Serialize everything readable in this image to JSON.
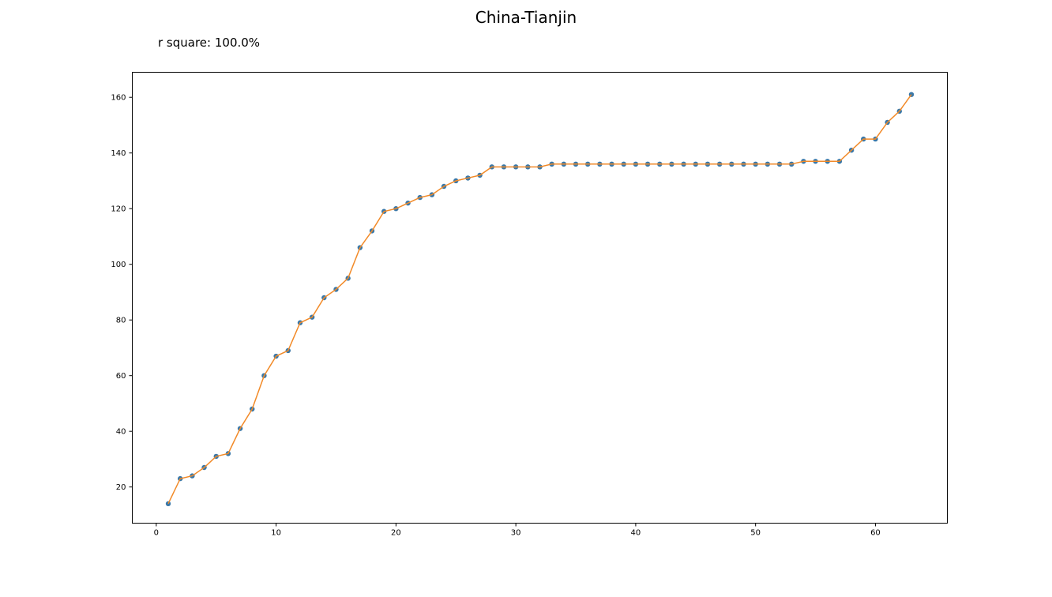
{
  "title": "China-Tianjin",
  "subtitle": "r square: 100.0%",
  "colors": {
    "marker": "#3a78a8",
    "line": "#f28a28",
    "axes": "#000000"
  },
  "chart_data": {
    "type": "line",
    "title": "China-Tianjin",
    "xlabel": "",
    "ylabel": "",
    "xlim": [
      -2,
      66
    ],
    "ylim": [
      7,
      169
    ],
    "xticks": [
      0,
      10,
      20,
      30,
      40,
      50,
      60
    ],
    "yticks": [
      20,
      40,
      60,
      80,
      100,
      120,
      140,
      160
    ],
    "grid": false,
    "x": [
      1,
      2,
      3,
      4,
      5,
      6,
      7,
      8,
      9,
      10,
      11,
      12,
      13,
      14,
      15,
      16,
      17,
      18,
      19,
      20,
      21,
      22,
      23,
      24,
      25,
      26,
      27,
      28,
      29,
      30,
      31,
      32,
      33,
      34,
      35,
      36,
      37,
      38,
      39,
      40,
      41,
      42,
      43,
      44,
      45,
      46,
      47,
      48,
      49,
      50,
      51,
      52,
      53,
      54,
      55,
      56,
      57,
      58,
      59,
      60,
      61,
      62,
      63
    ],
    "series": [
      {
        "style": "points",
        "values": [
          14,
          23,
          24,
          27,
          31,
          32,
          41,
          48,
          60,
          67,
          69,
          79,
          81,
          88,
          91,
          95,
          106,
          112,
          119,
          120,
          122,
          124,
          125,
          128,
          130,
          131,
          132,
          135,
          135,
          135,
          135,
          135,
          136,
          136,
          136,
          136,
          136,
          136,
          136,
          136,
          136,
          136,
          136,
          136,
          136,
          136,
          136,
          136,
          136,
          136,
          136,
          136,
          136,
          137,
          137,
          137,
          137,
          141,
          145,
          145,
          151,
          155,
          161
        ]
      },
      {
        "style": "line",
        "values": [
          14,
          23,
          24,
          27,
          31,
          32,
          41,
          48,
          60,
          67,
          69,
          79,
          81,
          88,
          91,
          95,
          106,
          112,
          119,
          120,
          122,
          124,
          125,
          128,
          130,
          131,
          132,
          135,
          135,
          135,
          135,
          135,
          136,
          136,
          136,
          136,
          136,
          136,
          136,
          136,
          136,
          136,
          136,
          136,
          136,
          136,
          136,
          136,
          136,
          136,
          136,
          136,
          136,
          137,
          137,
          137,
          137,
          141,
          145,
          145,
          151,
          155,
          161
        ]
      }
    ]
  }
}
